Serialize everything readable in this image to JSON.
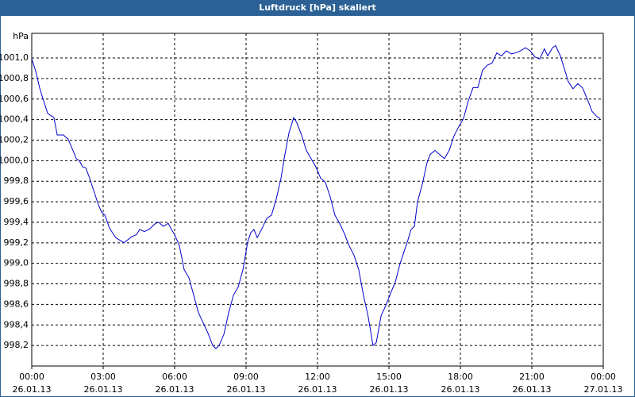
{
  "chart_data": {
    "type": "line",
    "title": "Luftdruck [hPa] skaliert",
    "y_unit": "hPa",
    "x": [
      0,
      0.17,
      0.33,
      0.5,
      0.67,
      0.93,
      1.07,
      1.33,
      1.53,
      1.73,
      1.87,
      2.0,
      2.13,
      2.27,
      2.4,
      2.6,
      2.8,
      2.93,
      3.07,
      3.27,
      3.53,
      3.87,
      4.2,
      4.4,
      4.53,
      4.73,
      4.93,
      5.2,
      5.33,
      5.53,
      5.73,
      5.87,
      6.0,
      6.2,
      6.4,
      6.6,
      6.8,
      7.0,
      7.2,
      7.4,
      7.6,
      7.73,
      7.87,
      8.07,
      8.27,
      8.47,
      8.67,
      8.87,
      9.07,
      9.2,
      9.33,
      9.47,
      9.67,
      9.87,
      10.07,
      10.27,
      10.47,
      10.6,
      10.8,
      11.0,
      11.13,
      11.33,
      11.53,
      11.73,
      11.93,
      12.13,
      12.33,
      12.53,
      12.73,
      12.93,
      13.13,
      13.33,
      13.53,
      13.73,
      13.93,
      14.13,
      14.33,
      14.47,
      14.67,
      14.87,
      15.07,
      15.27,
      15.47,
      15.6,
      15.8,
      15.93,
      16.07,
      16.2,
      16.4,
      16.6,
      16.73,
      16.93,
      17.13,
      17.33,
      17.53,
      17.73,
      17.93,
      18.13,
      18.33,
      18.53,
      18.73,
      18.93,
      19.13,
      19.33,
      19.53,
      19.73,
      19.93,
      20.13,
      20.33,
      20.53,
      20.73,
      20.93,
      21.13,
      21.33,
      21.53,
      21.67,
      21.87,
      22.0,
      22.2,
      22.4,
      22.53,
      22.73,
      22.93,
      23.13,
      23.33,
      23.53,
      23.73,
      23.87
    ],
    "series": [
      {
        "color": "#0000cc",
        "values": [
          1000.99,
          1000.87,
          1000.71,
          1000.58,
          1000.46,
          1000.42,
          1000.25,
          1000.25,
          1000.21,
          1000.1,
          1000.02,
          1000.0,
          999.94,
          999.93,
          999.85,
          999.71,
          999.57,
          999.5,
          999.47,
          999.34,
          999.25,
          999.2,
          999.26,
          999.28,
          999.33,
          999.31,
          999.33,
          999.39,
          999.4,
          999.36,
          999.39,
          999.33,
          999.28,
          999.17,
          998.94,
          998.86,
          998.69,
          998.52,
          998.42,
          998.32,
          998.2,
          998.17,
          998.2,
          998.31,
          998.52,
          998.69,
          998.77,
          998.94,
          999.21,
          999.3,
          999.33,
          999.25,
          999.34,
          999.44,
          999.47,
          999.63,
          999.83,
          1000.02,
          1000.27,
          1000.42,
          1000.37,
          1000.25,
          1000.1,
          1000.02,
          999.94,
          999.83,
          999.79,
          999.65,
          999.47,
          999.39,
          999.29,
          999.17,
          999.08,
          998.94,
          998.69,
          998.48,
          998.2,
          998.23,
          998.49,
          998.59,
          998.71,
          998.82,
          999.0,
          999.09,
          999.23,
          999.33,
          999.36,
          999.6,
          999.77,
          999.98,
          1000.06,
          1000.1,
          1000.06,
          1000.02,
          1000.1,
          1000.24,
          1000.33,
          1000.41,
          1000.58,
          1000.71,
          1000.71,
          1000.88,
          1000.93,
          1000.95,
          1001.05,
          1001.02,
          1001.07,
          1001.04,
          1001.05,
          1001.07,
          1001.1,
          1001.07,
          1001.01,
          1000.99,
          1001.09,
          1001.02,
          1001.1,
          1001.12,
          1001.02,
          1000.87,
          1000.77,
          1000.7,
          1000.75,
          1000.71,
          1000.6,
          1000.48,
          1000.43,
          1000.41
        ]
      }
    ],
    "xlim": [
      0,
      24
    ],
    "xticks": [
      {
        "value": 0,
        "label": "00:00",
        "date": "26.01.13"
      },
      {
        "value": 3,
        "label": "03:00",
        "date": "26.01.13"
      },
      {
        "value": 6,
        "label": "06:00",
        "date": "26.01.13"
      },
      {
        "value": 9,
        "label": "09:00",
        "date": "26.01.13"
      },
      {
        "value": 12,
        "label": "12:00",
        "date": "26.01.13"
      },
      {
        "value": 15,
        "label": "15:00",
        "date": "26.01.13"
      },
      {
        "value": 18,
        "label": "18:00",
        "date": "26.01.13"
      },
      {
        "value": 21,
        "label": "21:00",
        "date": "26.01.13"
      },
      {
        "value": 24,
        "label": "00:00",
        "date": "27.01.13"
      }
    ],
    "ylim": [
      998.0,
      1001.24
    ],
    "yticks": [
      {
        "value": 998.2,
        "label": "998,2"
      },
      {
        "value": 998.4,
        "label": "998,4"
      },
      {
        "value": 998.6,
        "label": "998,6"
      },
      {
        "value": 998.8,
        "label": "998,8"
      },
      {
        "value": 999.0,
        "label": "999,0"
      },
      {
        "value": 999.2,
        "label": "999,2"
      },
      {
        "value": 999.4,
        "label": "999,4"
      },
      {
        "value": 999.6,
        "label": "999,6"
      },
      {
        "value": 999.8,
        "label": "999,8"
      },
      {
        "value": 1000.0,
        "label": "1000,0"
      },
      {
        "value": 1000.2,
        "label": "1000,2"
      },
      {
        "value": 1000.4,
        "label": "1000,4"
      },
      {
        "value": 1000.6,
        "label": "1000,6"
      },
      {
        "value": 1000.8,
        "label": "1000,8"
      },
      {
        "value": 1001.0,
        "label": "1001,0"
      }
    ],
    "grid": true
  }
}
